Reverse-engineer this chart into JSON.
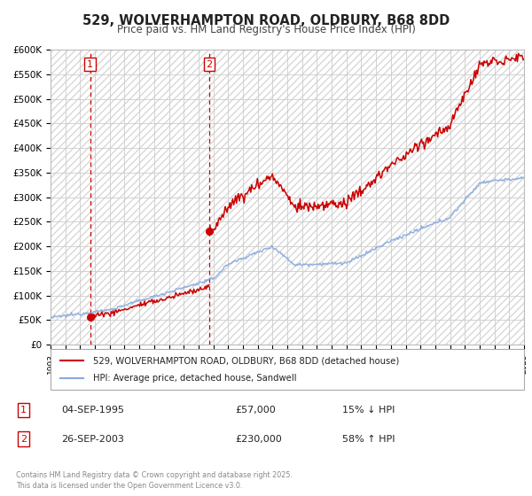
{
  "title": "529, WOLVERHAMPTON ROAD, OLDBURY, B68 8DD",
  "subtitle": "Price paid vs. HM Land Registry's House Price Index (HPI)",
  "ylabel_ticks": [
    "£0",
    "£50K",
    "£100K",
    "£150K",
    "£200K",
    "£250K",
    "£300K",
    "£350K",
    "£400K",
    "£450K",
    "£500K",
    "£550K",
    "£600K"
  ],
  "ytick_values": [
    0,
    50000,
    100000,
    150000,
    200000,
    250000,
    300000,
    350000,
    400000,
    450000,
    500000,
    550000,
    600000
  ],
  "grid_color": "#cccccc",
  "red_line_color": "#cc0000",
  "blue_line_color": "#88aadd",
  "marker1_date": 1995.67,
  "marker1_value": 57000,
  "marker1_label": "1",
  "marker2_date": 2003.73,
  "marker2_value": 230000,
  "marker2_label": "2",
  "legend_label_red": "529, WOLVERHAMPTON ROAD, OLDBURY, B68 8DD (detached house)",
  "legend_label_blue": "HPI: Average price, detached house, Sandwell",
  "table_row1": [
    "1",
    "04-SEP-1995",
    "£57,000",
    "15% ↓ HPI"
  ],
  "table_row2": [
    "2",
    "26-SEP-2003",
    "£230,000",
    "58% ↑ HPI"
  ],
  "footer": "Contains HM Land Registry data © Crown copyright and database right 2025.\nThis data is licensed under the Open Government Licence v3.0.",
  "xmin": 1993,
  "xmax": 2025,
  "ymin": 0,
  "ymax": 600000
}
